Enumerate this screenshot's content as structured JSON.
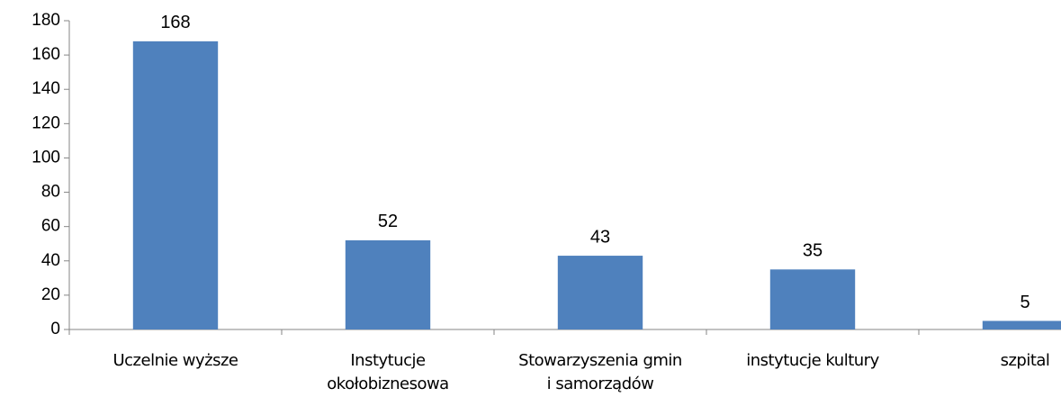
{
  "chart_data": {
    "type": "bar",
    "categories": [
      "Uczelnie wyższe",
      "Instytucje\nokołobiznesowa",
      "Stowarzyszenia gmin\ni samorządów",
      "instytucje kultury",
      "szpital"
    ],
    "values": [
      168,
      52,
      43,
      35,
      5
    ],
    "color": "#4f81bd",
    "ylim": [
      0,
      180
    ],
    "yticks": [
      0,
      20,
      40,
      60,
      80,
      100,
      120,
      140,
      160,
      180
    ],
    "grid": false
  }
}
